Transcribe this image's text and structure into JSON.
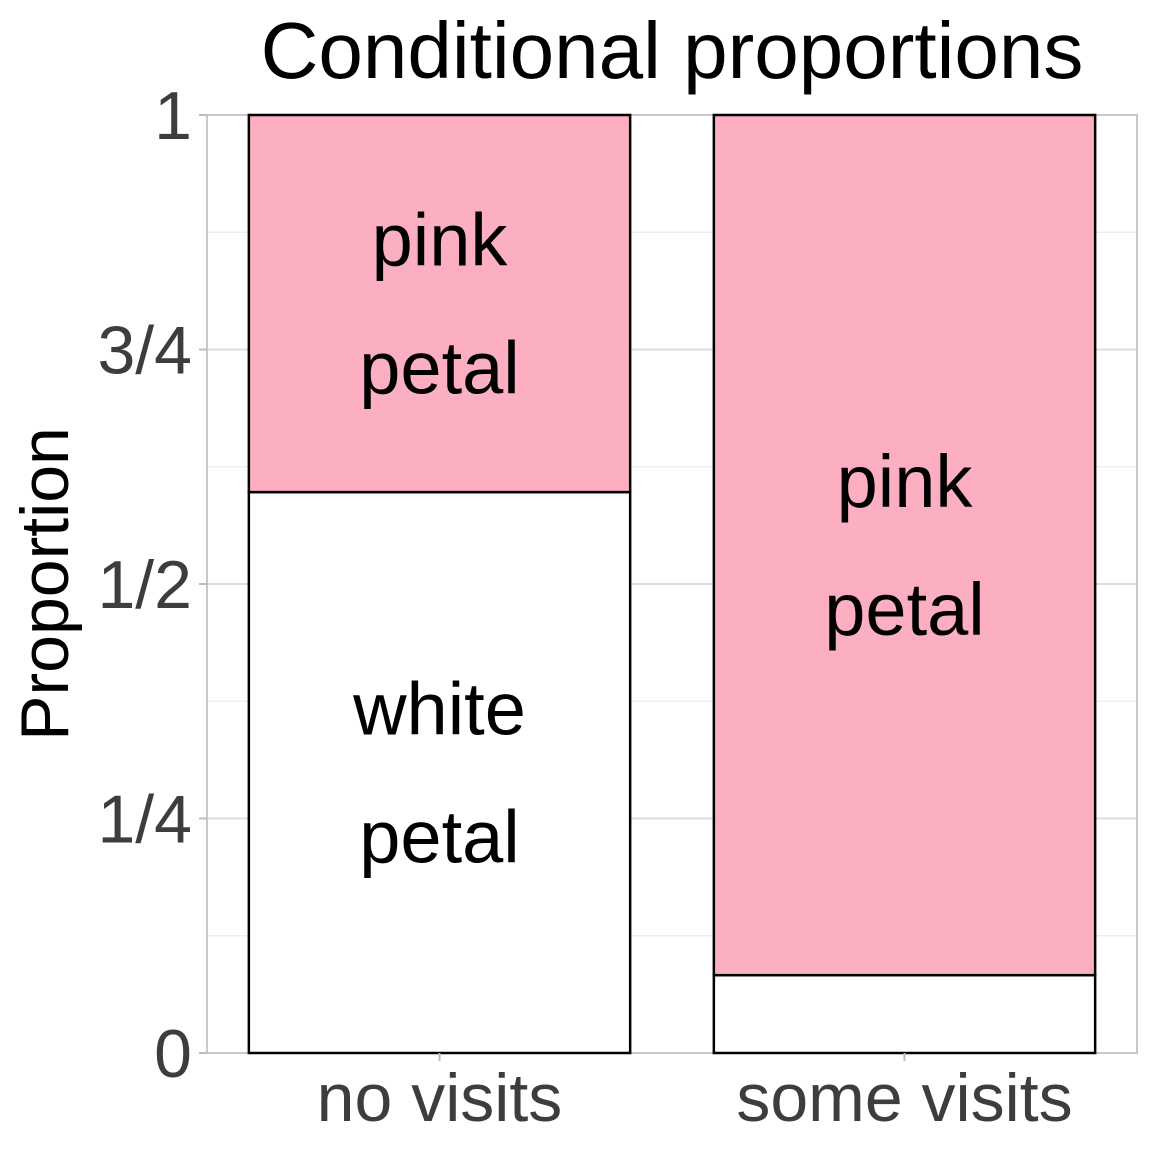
{
  "chart_data": {
    "type": "bar",
    "stacked": true,
    "title": "Conditional proportions",
    "xlabel": "",
    "ylabel": "Proportion",
    "ylim": [
      0,
      1
    ],
    "y_ticks": [
      {
        "value": 0,
        "label": "0"
      },
      {
        "value": 0.25,
        "label": "1/4"
      },
      {
        "value": 0.5,
        "label": "1/2"
      },
      {
        "value": 0.75,
        "label": "3/4"
      },
      {
        "value": 1,
        "label": "1"
      }
    ],
    "grid": true,
    "categories": [
      "no visits",
      "some visits"
    ],
    "series": [
      {
        "name": "white petal",
        "color": "#ffffff",
        "values": [
          0.598,
          0.083
        ],
        "segment_labels": [
          [
            "white",
            "petal"
          ],
          null
        ]
      },
      {
        "name": "pink petal",
        "color": "#fcafc1",
        "values": [
          0.402,
          0.917
        ],
        "segment_labels": [
          [
            "pink",
            "petal"
          ],
          [
            "pink",
            "petal"
          ]
        ]
      }
    ]
  }
}
